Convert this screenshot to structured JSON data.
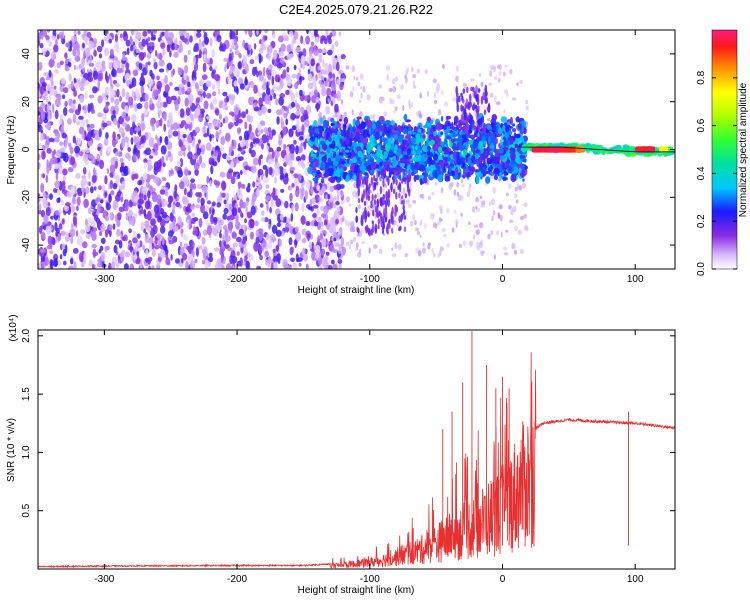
{
  "title": "C2E4.2025.079.21.26.R22",
  "chart_data": [
    {
      "type": "heatmap",
      "name": "spectrogram",
      "xlabel": "Height of straight line (km)",
      "ylabel": "Frequency (Hz)",
      "xlim": [
        -350,
        130
      ],
      "ylim": [
        -50,
        50
      ],
      "xticks": [
        -300,
        -200,
        -100,
        0,
        100
      ],
      "yticks": [
        -40,
        -20,
        0,
        20,
        40
      ],
      "colorbar": {
        "label": "Normalized spectral amplitude",
        "range": [
          0,
          1
        ],
        "ticks": [
          "0.0",
          "0.2",
          "0.4",
          "0.6",
          "0.8"
        ],
        "tick_values": [
          0.0,
          0.2,
          0.4,
          0.6,
          0.8
        ]
      },
      "regions": [
        {
          "x_range": [
            -350,
            -120
          ],
          "freq_range": [
            -50,
            50
          ],
          "amplitude": [
            0.05,
            0.25
          ],
          "description_values": "broadband noise"
        },
        {
          "x_range": [
            -145,
            15
          ],
          "freq_range": [
            -12,
            12
          ],
          "amplitude": [
            0.15,
            0.55
          ]
        },
        {
          "x_range": [
            15,
            130
          ],
          "freq_range": [
            -2,
            2
          ],
          "amplitude": [
            0.6,
            1.0
          ]
        }
      ],
      "tone_line": {
        "x_range": [
          15,
          130
        ],
        "y": [
          1,
          1,
          0,
          -1,
          -1
        ]
      }
    },
    {
      "type": "line",
      "name": "snr",
      "xlabel": "Height of straight line (km)",
      "ylabel": "SNR (10 * v/v)",
      "multiplier": "(x10⁴)",
      "xlim": [
        -350,
        130
      ],
      "ylim": [
        0,
        2.05
      ],
      "xticks": [
        -300,
        -200,
        -100,
        0,
        100
      ],
      "yticks": [
        0.5,
        1.0,
        1.5,
        2.0
      ],
      "ytick_labels": [
        "0.5",
        "1.0",
        "1.5",
        "2.0"
      ],
      "color": "#e83030",
      "envelope_x": [
        -350,
        -300,
        -200,
        -150,
        -120,
        -100,
        -80,
        -60,
        -40,
        -20,
        0,
        10,
        20,
        30,
        50,
        80,
        100,
        130
      ],
      "envelope_y": [
        0.02,
        0.025,
        0.03,
        0.03,
        0.05,
        0.08,
        0.15,
        0.25,
        0.4,
        0.55,
        0.75,
        0.95,
        1.15,
        1.25,
        1.28,
        1.26,
        1.25,
        1.21
      ],
      "spikes": [
        [
          -23,
          2.04
        ],
        [
          -12,
          1.75
        ],
        [
          0,
          1.65
        ],
        [
          -30,
          1.6
        ],
        [
          -5,
          1.55
        ],
        [
          5,
          1.55
        ],
        [
          -38,
          1.35
        ],
        [
          -45,
          1.2
        ],
        [
          95,
          1.35
        ]
      ]
    }
  ]
}
